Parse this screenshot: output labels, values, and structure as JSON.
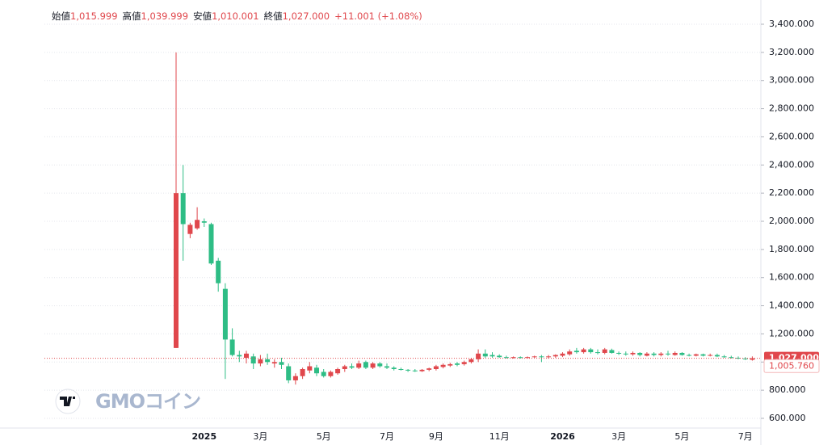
{
  "chart_data": {
    "type": "candlestick",
    "header": [
      {
        "label": "始値",
        "value": "1,015.999"
      },
      {
        "label": "高値",
        "value": "1,039.999"
      },
      {
        "label": "安値",
        "value": "1,010.001"
      },
      {
        "label": "終値",
        "value": "1,027.000"
      }
    ],
    "change": "+11.001 (+1.08%)",
    "watermark": "GMOコイン",
    "up_color": "#e0474c",
    "down_color": "#2ebd85",
    "grid": true,
    "ylim": [
      600,
      3400
    ],
    "yticks": [
      {
        "value": 600,
        "label": "600.000"
      },
      {
        "value": 800,
        "label": "800.000"
      },
      {
        "value": 1000,
        "label": "1,000.000"
      },
      {
        "value": 1200,
        "label": "1,200.000"
      },
      {
        "value": 1400,
        "label": "1,400.000"
      },
      {
        "value": 1600,
        "label": "1,600.000"
      },
      {
        "value": 1800,
        "label": "1,800.000"
      },
      {
        "value": 2000,
        "label": "2,000.000"
      },
      {
        "value": 2200,
        "label": "2,200.000"
      },
      {
        "value": 2400,
        "label": "2,400.000"
      },
      {
        "value": 2600,
        "label": "2,600.000"
      },
      {
        "value": 2800,
        "label": "2,800.000"
      },
      {
        "value": 3000,
        "label": "3,000.000"
      },
      {
        "value": 3200,
        "label": "3,200.000"
      },
      {
        "value": 3400,
        "label": "3,400.000"
      }
    ],
    "last_price": {
      "value": 1027,
      "label": "1,027.000"
    },
    "other_price": {
      "value": 1005.76,
      "label": "1,005.760"
    },
    "categories": [
      null,
      null,
      null,
      null,
      "2025",
      null,
      null,
      null,
      null,
      null,
      null,
      null,
      "3月",
      null,
      null,
      null,
      null,
      null,
      null,
      null,
      null,
      "5月",
      null,
      null,
      null,
      null,
      null,
      null,
      null,
      null,
      "7月",
      null,
      null,
      null,
      null,
      null,
      null,
      "9月",
      null,
      null,
      null,
      null,
      null,
      null,
      null,
      null,
      "11月",
      null,
      null,
      null,
      null,
      null,
      null,
      null,
      null,
      "2026",
      null,
      null,
      null,
      null,
      null,
      null,
      null,
      "3月",
      null,
      null,
      null,
      null,
      null,
      null,
      null,
      null,
      "5月",
      null,
      null,
      null,
      null,
      null,
      null,
      null,
      null,
      "7月",
      null
    ],
    "open": [
      1100,
      2200,
      1910,
      1950,
      2000,
      1980,
      1720,
      1520,
      1160,
      1050,
      1030,
      1040,
      990,
      1020,
      990,
      1000,
      970,
      870,
      900,
      940,
      960,
      930,
      900,
      920,
      950,
      970,
      960,
      1000,
      960,
      990,
      970,
      960,
      950,
      945,
      940,
      935,
      945,
      950,
      965,
      975,
      990,
      985,
      1000,
      1020,
      1060,
      1050,
      1045,
      1035,
      1030,
      1035,
      1030,
      1035,
      1040,
      1035,
      1040,
      1045,
      1055,
      1080,
      1070,
      1090,
      1070,
      1065,
      1085,
      1065,
      1060,
      1055,
      1065,
      1045,
      1060,
      1050,
      1060,
      1050,
      1065,
      1050,
      1045,
      1055,
      1045,
      1050,
      1040,
      1035,
      1030,
      1025,
      1015.999
    ],
    "high": [
      3200,
      2400,
      1990,
      2100,
      2020,
      1990,
      1740,
      1560,
      1240,
      1080,
      1080,
      1060,
      1050,
      1060,
      1020,
      1030,
      990,
      920,
      960,
      1000,
      980,
      950,
      940,
      960,
      980,
      990,
      1010,
      1010,
      1000,
      1000,
      990,
      970,
      960,
      950,
      950,
      950,
      960,
      980,
      990,
      995,
      1000,
      1010,
      1030,
      1090,
      1090,
      1070,
      1055,
      1045,
      1040,
      1040,
      1040,
      1045,
      1050,
      1050,
      1055,
      1070,
      1090,
      1100,
      1100,
      1100,
      1090,
      1100,
      1095,
      1075,
      1075,
      1075,
      1070,
      1070,
      1070,
      1070,
      1080,
      1075,
      1070,
      1060,
      1060,
      1060,
      1060,
      1060,
      1050,
      1045,
      1040,
      1035,
      1039.999
    ],
    "low": [
      1100,
      1720,
      1880,
      1940,
      1960,
      1690,
      1500,
      880,
      1040,
      1000,
      990,
      950,
      970,
      980,
      960,
      950,
      850,
      840,
      880,
      920,
      900,
      890,
      890,
      910,
      930,
      950,
      950,
      950,
      950,
      960,
      950,
      940,
      940,
      930,
      930,
      930,
      935,
      940,
      955,
      965,
      970,
      975,
      990,
      1000,
      1030,
      1030,
      1030,
      1025,
      1025,
      1025,
      1025,
      1030,
      1000,
      1025,
      1030,
      1035,
      1045,
      1060,
      1060,
      1060,
      1055,
      1055,
      1060,
      1050,
      1045,
      1045,
      1040,
      1040,
      1040,
      1040,
      1045,
      1045,
      1045,
      1040,
      1040,
      1040,
      1040,
      1035,
      1030,
      1025,
      1020,
      1015,
      1010.001
    ],
    "close": [
      2200,
      1980,
      1975,
      2010,
      1990,
      1700,
      1560,
      1160,
      1050,
      1040,
      1060,
      990,
      1020,
      1000,
      1000,
      980,
      870,
      900,
      950,
      970,
      920,
      900,
      930,
      950,
      970,
      960,
      990,
      960,
      990,
      970,
      960,
      950,
      945,
      940,
      935,
      945,
      955,
      970,
      980,
      985,
      980,
      1000,
      1020,
      1060,
      1040,
      1040,
      1035,
      1030,
      1035,
      1030,
      1035,
      1040,
      1035,
      1040,
      1050,
      1060,
      1075,
      1070,
      1090,
      1070,
      1065,
      1090,
      1065,
      1060,
      1055,
      1065,
      1050,
      1060,
      1050,
      1060,
      1055,
      1065,
      1050,
      1045,
      1055,
      1045,
      1050,
      1040,
      1035,
      1030,
      1025,
      1020,
      1027
    ]
  }
}
